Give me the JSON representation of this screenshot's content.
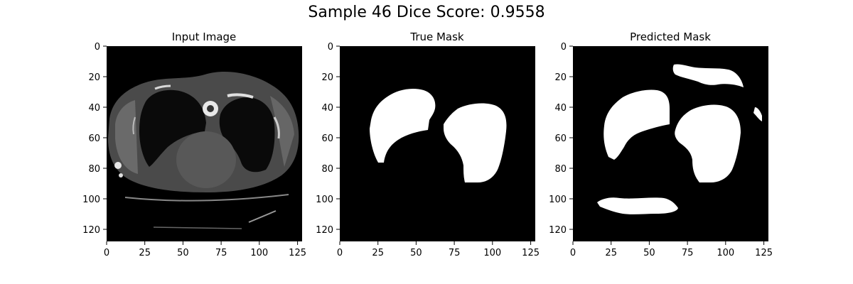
{
  "figure": {
    "suptitle": "Sample 46 Dice Score: 0.9558",
    "panels": [
      {
        "title": "Input Image",
        "kind": "ct-scan",
        "x_ticks": [
          "0",
          "25",
          "50",
          "75",
          "100",
          "125"
        ],
        "y_ticks": [
          "0",
          "20",
          "40",
          "60",
          "80",
          "100",
          "120"
        ]
      },
      {
        "title": "True Mask",
        "kind": "binary-mask",
        "x_ticks": [
          "0",
          "25",
          "50",
          "75",
          "100",
          "125"
        ],
        "y_ticks": [
          "0",
          "20",
          "40",
          "60",
          "80",
          "100",
          "120"
        ],
        "regions": [
          "right-lung",
          "left-lung"
        ]
      },
      {
        "title": "Predicted Mask",
        "kind": "binary-mask",
        "x_ticks": [
          "0",
          "25",
          "50",
          "75",
          "100",
          "125"
        ],
        "y_ticks": [
          "0",
          "20",
          "40",
          "60",
          "80",
          "100",
          "120"
        ],
        "regions": [
          "right-lung",
          "left-lung",
          "upper-false-positive",
          "small-false-positive",
          "lower-false-positive"
        ]
      }
    ]
  }
}
